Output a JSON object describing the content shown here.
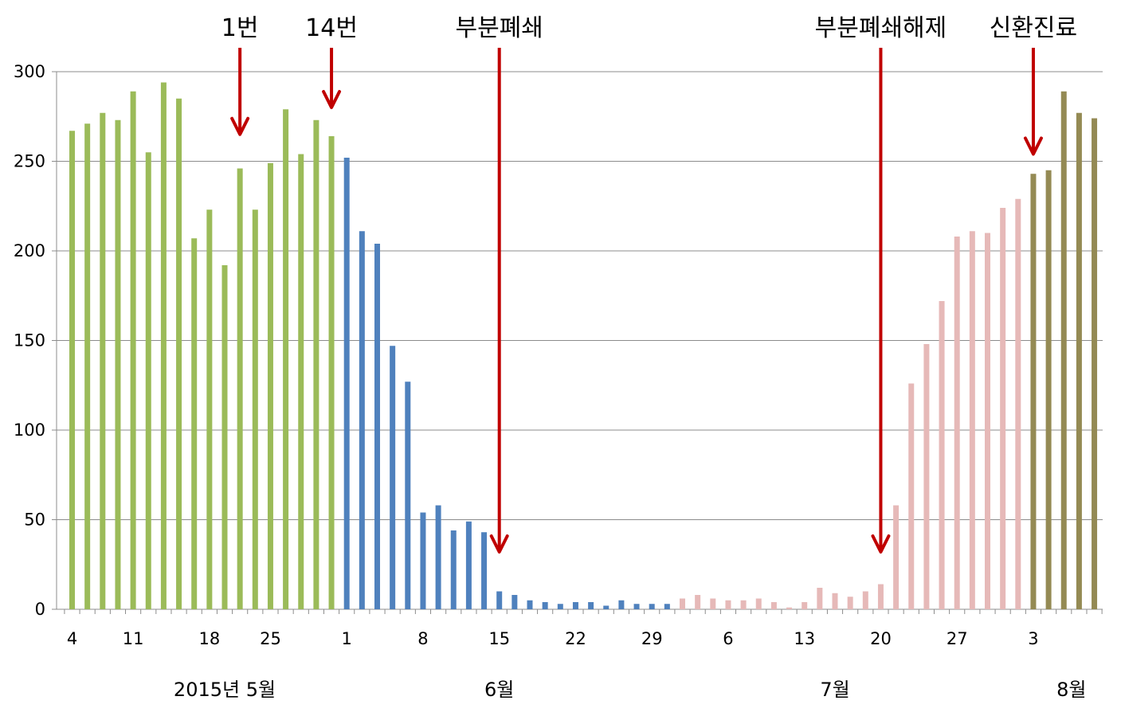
{
  "chart_data": {
    "type": "bar",
    "title": "",
    "xlabel": "",
    "ylabel": "",
    "ylim": [
      0,
      300
    ],
    "yticks": [
      0,
      50,
      100,
      150,
      200,
      250,
      300
    ],
    "grid": true,
    "legend": "none",
    "x_tick_labels": [
      {
        "index": 0,
        "label": "4"
      },
      {
        "index": 4,
        "label": "11"
      },
      {
        "index": 9,
        "label": "18"
      },
      {
        "index": 13,
        "label": "25"
      },
      {
        "index": 18,
        "label": "1"
      },
      {
        "index": 23,
        "label": "8"
      },
      {
        "index": 28,
        "label": "15"
      },
      {
        "index": 33,
        "label": "22"
      },
      {
        "index": 38,
        "label": "29"
      },
      {
        "index": 43,
        "label": "6"
      },
      {
        "index": 48,
        "label": "13"
      },
      {
        "index": 53,
        "label": "20"
      },
      {
        "index": 58,
        "label": "27"
      },
      {
        "index": 63,
        "label": "3"
      }
    ],
    "month_labels": [
      {
        "index": 10,
        "label": "2015년 5월"
      },
      {
        "index": 28,
        "label": "6월"
      },
      {
        "index": 50,
        "label": "7월"
      },
      {
        "index": 65.5,
        "label": "8월"
      }
    ],
    "series": [
      {
        "color": "#9BBB59",
        "start_index": 0,
        "values": [
          267,
          271,
          277,
          273,
          289,
          255,
          294,
          285,
          207,
          223,
          192,
          246,
          223,
          249,
          279,
          254,
          273,
          264
        ]
      },
      {
        "color": "#4F81BD",
        "start_index": 18,
        "values": [
          252,
          211,
          204,
          147,
          127,
          54,
          58,
          44,
          49,
          43,
          10,
          8,
          5,
          4,
          3,
          4,
          4,
          2,
          5,
          3,
          3,
          3
        ]
      },
      {
        "color": "#E6B9B8",
        "start_index": 40,
        "values": [
          6,
          8,
          6,
          5,
          5,
          6,
          4,
          1,
          4,
          12,
          9,
          7,
          10,
          14,
          58,
          126,
          148,
          172,
          208,
          211,
          210,
          224,
          229
        ]
      },
      {
        "color": "#948A54",
        "start_index": 63,
        "values": [
          243,
          245,
          289,
          277,
          274
        ]
      }
    ],
    "annotations": [
      {
        "label": "1번",
        "index": 11,
        "arrow_to_value": 265
      },
      {
        "label": "14번",
        "index": 17,
        "arrow_to_value": 280
      },
      {
        "label": "부분폐쇄",
        "index": 28,
        "arrow_to_value": 32
      },
      {
        "label": "부분폐쇄해제",
        "index": 53,
        "arrow_to_value": 32
      },
      {
        "label": "신환진료",
        "index": 63,
        "arrow_to_value": 254
      }
    ],
    "arrow_color": "#C00000"
  }
}
